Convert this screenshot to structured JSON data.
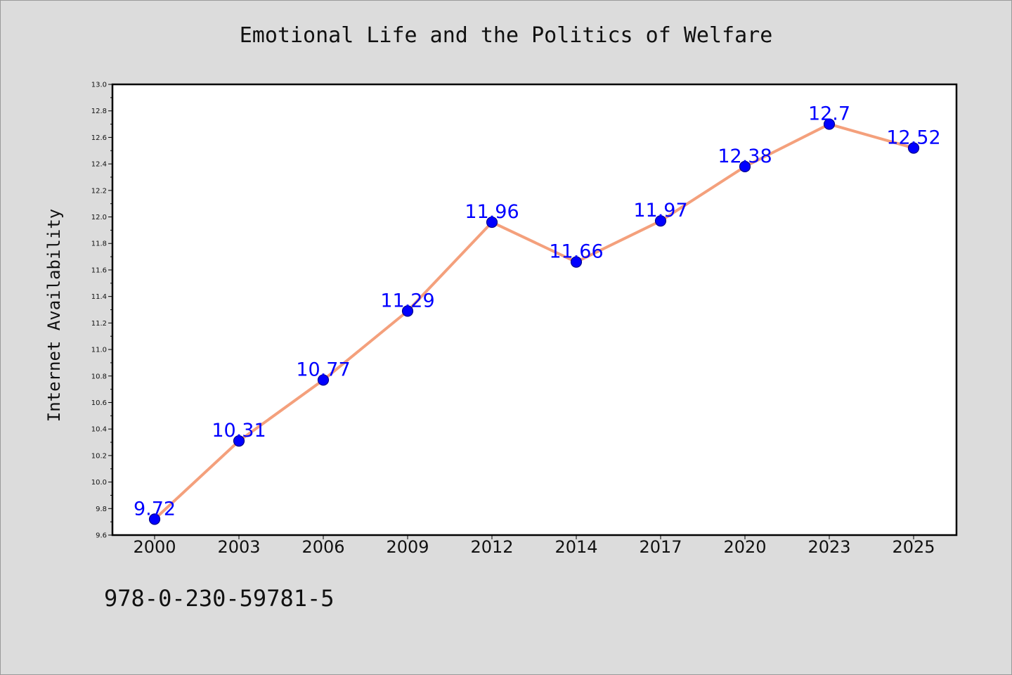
{
  "chart_data": {
    "type": "line",
    "title": "Emotional Life and the Politics of Welfare",
    "xlabel": "",
    "ylabel": "Internet Availability",
    "categories": [
      "2000",
      "2003",
      "2006",
      "2009",
      "2012",
      "2014",
      "2017",
      "2020",
      "2023",
      "2025"
    ],
    "series": [
      {
        "values": [
          9.72,
          10.31,
          10.77,
          11.29,
          11.96,
          11.66,
          11.97,
          12.38,
          12.7,
          12.52
        ],
        "data_labels": [
          "9.72",
          "10.31",
          "10.77",
          "11.29",
          "11.96",
          "11.66",
          "11.97",
          "12.38",
          "12.7",
          "12.52"
        ]
      }
    ],
    "ylim": [
      9.6,
      13.0
    ],
    "yticks": [
      "9.6",
      "9.8",
      "10.0",
      "10.2",
      "10.4",
      "10.6",
      "10.8",
      "11.0",
      "11.2",
      "11.4",
      "11.6",
      "11.8",
      "12.0",
      "12.2",
      "12.4",
      "12.6",
      "12.8",
      "13.0"
    ],
    "grid": false,
    "colors": {
      "line": "#f4a07c",
      "marker": "#0000ff",
      "marker_edge": "#00008b",
      "data_label": "#0000ff",
      "plot_bg": "#ffffff",
      "page_bg": "#dcdcdc"
    }
  },
  "footer_text": "978-0-230-59781-5"
}
